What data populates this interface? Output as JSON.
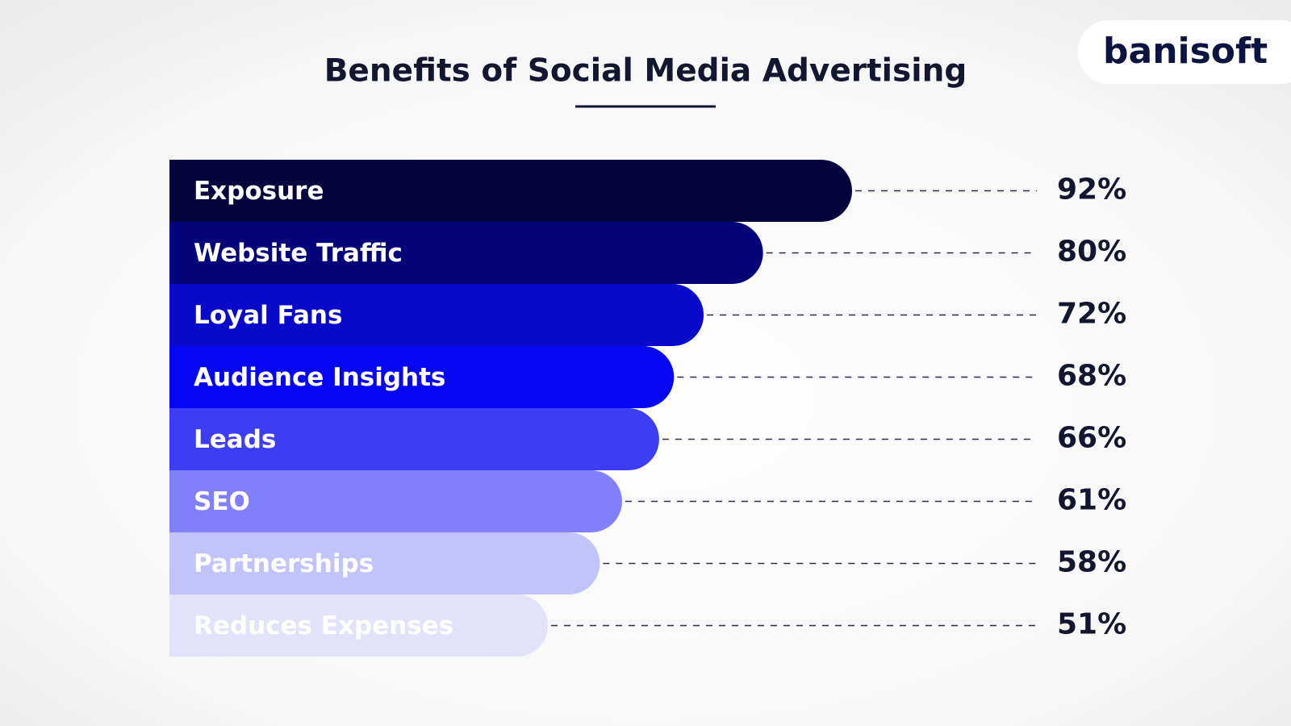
{
  "chart_data": {
    "type": "bar",
    "orientation": "horizontal",
    "title": "Benefits of Social Media Advertising",
    "logo": "banisoft",
    "categories": [
      "Exposure",
      "Website Traffic",
      "Loyal Fans",
      "Audience Insights",
      "Leads",
      "SEO",
      "Partnerships",
      "Reduces Expenses"
    ],
    "values": [
      92,
      80,
      72,
      68,
      66,
      61,
      58,
      51
    ],
    "value_labels": [
      "92%",
      "80%",
      "72%",
      "68%",
      "66%",
      "61%",
      "58%",
      "51%"
    ],
    "colors": [
      "#05043d",
      "#03037a",
      "#0909c9",
      "#0606f2",
      "#3d3df6",
      "#8080fd",
      "#c3c3fb",
      "#e2e2fa"
    ]
  }
}
